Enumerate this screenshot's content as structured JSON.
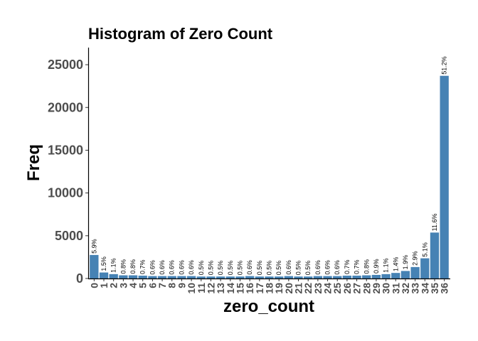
{
  "chart_data": {
    "type": "bar",
    "title": "Histogram of Zero Count",
    "xlabel": "zero_count",
    "ylabel": "Freq",
    "ylim": [
      0,
      27000
    ],
    "yticks": [
      0,
      5000,
      10000,
      15000,
      20000,
      25000
    ],
    "grid": false,
    "bar_color": "#4682B4",
    "categories": [
      "0",
      "1",
      "2",
      "3",
      "4",
      "5",
      "6",
      "7",
      "8",
      "9",
      "10",
      "11",
      "12",
      "13",
      "14",
      "15",
      "16",
      "17",
      "18",
      "19",
      "20",
      "21",
      "22",
      "23",
      "24",
      "25",
      "26",
      "27",
      "28",
      "29",
      "30",
      "31",
      "32",
      "33",
      "34",
      "35",
      "36"
    ],
    "values": [
      2750,
      700,
      510,
      370,
      370,
      330,
      280,
      280,
      280,
      280,
      280,
      230,
      230,
      230,
      230,
      230,
      280,
      230,
      230,
      230,
      280,
      230,
      230,
      280,
      280,
      280,
      330,
      330,
      370,
      420,
      510,
      650,
      880,
      1340,
      2360,
      5370,
      23700
    ],
    "labels": [
      "5.9%",
      "1.5%",
      "1.1%",
      "0.8%",
      "0.8%",
      "0.7%",
      "0.6%",
      "0.6%",
      "0.6%",
      "0.6%",
      "0.6%",
      "0.5%",
      "0.5%",
      "0.5%",
      "0.5%",
      "0.5%",
      "0.6%",
      "0.5%",
      "0.5%",
      "0.5%",
      "0.6%",
      "0.5%",
      "0.5%",
      "0.6%",
      "0.6%",
      "0.6%",
      "0.7%",
      "0.7%",
      "0.8%",
      "0.9%",
      "1.1%",
      "1.4%",
      "1.9%",
      "2.9%",
      "5.1%",
      "11.6%",
      "51.2%"
    ]
  }
}
